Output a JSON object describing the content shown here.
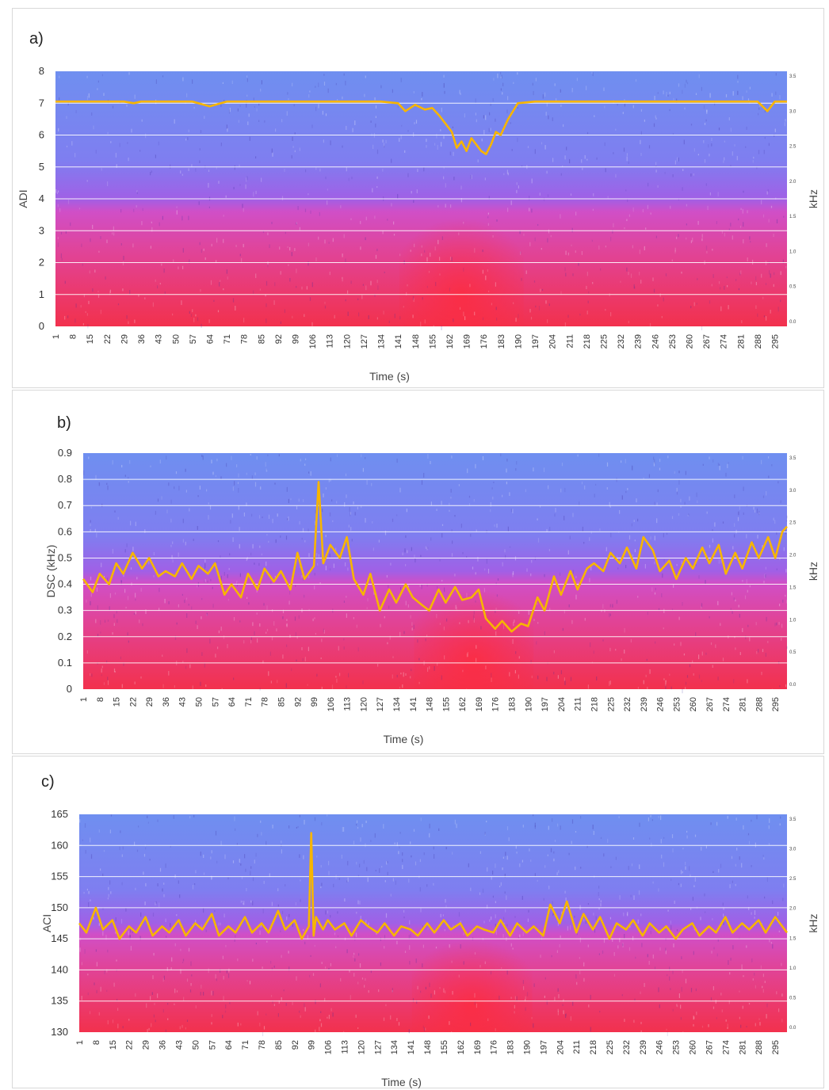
{
  "chart_data": [
    {
      "type": "line",
      "panel_label": "a)",
      "ylabel": "ADI",
      "xlabel": "Time (s)",
      "right_axis_label": "kHz",
      "ylim": [
        0,
        8
      ],
      "yticks": [
        0,
        1,
        2,
        3,
        4,
        5,
        6,
        7,
        8
      ],
      "right_ticks": [
        "0.0",
        "0.5",
        "1.0",
        "1.5",
        "2.0",
        "2.5",
        "3.0",
        "3.5"
      ],
      "xlim": [
        1,
        300
      ],
      "xticks": [
        1,
        8,
        15,
        22,
        29,
        36,
        43,
        50,
        57,
        64,
        71,
        78,
        85,
        92,
        99,
        106,
        113,
        120,
        127,
        134,
        141,
        148,
        155,
        162,
        169,
        176,
        183,
        190,
        197,
        204,
        211,
        218,
        225,
        232,
        239,
        246,
        253,
        260,
        267,
        274,
        281,
        288,
        295
      ],
      "grid": true,
      "series": [
        {
          "color": "#f7b500",
          "x": [
            1,
            8,
            15,
            22,
            29,
            33,
            36,
            43,
            50,
            57,
            64,
            71,
            78,
            85,
            92,
            99,
            106,
            113,
            120,
            127,
            134,
            141,
            144,
            148,
            152,
            155,
            158,
            161,
            163,
            165,
            167,
            169,
            171,
            173,
            175,
            177,
            179,
            181,
            183,
            186,
            190,
            197,
            204,
            211,
            218,
            225,
            232,
            239,
            246,
            253,
            260,
            267,
            274,
            281,
            288,
            292,
            295,
            300
          ],
          "y": [
            7.05,
            7.05,
            7.05,
            7.05,
            7.05,
            7.0,
            7.05,
            7.05,
            7.05,
            7.05,
            6.9,
            7.05,
            7.05,
            7.05,
            7.05,
            7.05,
            7.05,
            7.05,
            7.05,
            7.05,
            7.05,
            7.0,
            6.75,
            6.95,
            6.8,
            6.85,
            6.6,
            6.3,
            6.1,
            5.6,
            5.8,
            5.5,
            5.9,
            5.7,
            5.5,
            5.4,
            5.7,
            6.1,
            6.0,
            6.5,
            7.0,
            7.05,
            7.05,
            7.05,
            7.05,
            7.05,
            7.05,
            7.05,
            7.05,
            7.05,
            7.05,
            7.05,
            7.05,
            7.05,
            7.05,
            6.75,
            7.05,
            7.05
          ]
        }
      ]
    },
    {
      "type": "line",
      "panel_label": "b)",
      "ylabel": "DSC (kHz)",
      "xlabel": "Time (s)",
      "right_axis_label": "kHz",
      "ylim": [
        0,
        0.9
      ],
      "yticks": [
        0,
        0.1,
        0.2,
        0.3,
        0.4,
        0.5,
        0.6,
        0.7,
        0.8,
        0.9
      ],
      "right_ticks": [
        "0.0",
        "0.5",
        "1.0",
        "1.5",
        "2.0",
        "2.5",
        "3.0",
        "3.5"
      ],
      "xlim": [
        1,
        300
      ],
      "xticks": [
        1,
        8,
        15,
        22,
        29,
        36,
        43,
        50,
        57,
        64,
        71,
        78,
        85,
        92,
        99,
        106,
        113,
        120,
        127,
        134,
        141,
        148,
        155,
        162,
        169,
        176,
        183,
        190,
        197,
        204,
        211,
        218,
        225,
        232,
        239,
        246,
        253,
        260,
        267,
        274,
        281,
        288,
        295
      ],
      "grid": true,
      "series": [
        {
          "color": "#f7b500",
          "x": [
            1,
            5,
            8,
            12,
            15,
            18,
            22,
            26,
            29,
            33,
            36,
            40,
            43,
            47,
            50,
            54,
            57,
            61,
            64,
            68,
            71,
            75,
            78,
            82,
            85,
            89,
            92,
            95,
            99,
            101,
            103,
            106,
            110,
            113,
            116,
            120,
            123,
            127,
            131,
            134,
            138,
            141,
            145,
            148,
            152,
            155,
            159,
            162,
            166,
            169,
            172,
            176,
            179,
            183,
            187,
            190,
            194,
            197,
            201,
            204,
            208,
            211,
            215,
            218,
            222,
            225,
            229,
            232,
            236,
            239,
            243,
            246,
            250,
            253,
            257,
            260,
            264,
            267,
            271,
            274,
            278,
            281,
            285,
            288,
            292,
            295,
            298,
            300
          ],
          "y": [
            0.42,
            0.37,
            0.44,
            0.4,
            0.48,
            0.44,
            0.52,
            0.46,
            0.5,
            0.43,
            0.45,
            0.43,
            0.48,
            0.42,
            0.47,
            0.44,
            0.48,
            0.36,
            0.4,
            0.35,
            0.44,
            0.38,
            0.46,
            0.41,
            0.45,
            0.38,
            0.52,
            0.42,
            0.47,
            0.79,
            0.48,
            0.55,
            0.5,
            0.58,
            0.42,
            0.36,
            0.44,
            0.3,
            0.38,
            0.33,
            0.4,
            0.35,
            0.32,
            0.3,
            0.38,
            0.33,
            0.39,
            0.34,
            0.35,
            0.38,
            0.27,
            0.23,
            0.26,
            0.22,
            0.25,
            0.24,
            0.35,
            0.3,
            0.43,
            0.36,
            0.45,
            0.38,
            0.46,
            0.48,
            0.45,
            0.52,
            0.48,
            0.54,
            0.46,
            0.58,
            0.53,
            0.45,
            0.49,
            0.42,
            0.5,
            0.46,
            0.54,
            0.48,
            0.55,
            0.44,
            0.52,
            0.46,
            0.56,
            0.5,
            0.58,
            0.5,
            0.6,
            0.62
          ]
        }
      ]
    },
    {
      "type": "line",
      "panel_label": "c)",
      "ylabel": "ACI",
      "xlabel": "Time (s)",
      "right_axis_label": "kHz",
      "ylim": [
        130,
        165
      ],
      "yticks": [
        130,
        135,
        140,
        145,
        150,
        155,
        160,
        165
      ],
      "right_ticks": [
        "0.0",
        "0.5",
        "1.0",
        "1.5",
        "2.0",
        "2.5",
        "3.0",
        "3.5"
      ],
      "xlim": [
        1,
        300
      ],
      "xticks": [
        1,
        8,
        15,
        22,
        29,
        36,
        43,
        50,
        57,
        64,
        71,
        78,
        85,
        92,
        99,
        106,
        113,
        120,
        127,
        134,
        141,
        148,
        155,
        162,
        169,
        176,
        183,
        190,
        197,
        204,
        211,
        218,
        225,
        232,
        239,
        246,
        253,
        260,
        267,
        274,
        281,
        288,
        295
      ],
      "grid": true,
      "series": [
        {
          "color": "#f7b500",
          "x": [
            1,
            4,
            8,
            11,
            15,
            18,
            22,
            25,
            29,
            32,
            36,
            39,
            43,
            46,
            50,
            53,
            57,
            60,
            64,
            67,
            71,
            74,
            78,
            81,
            85,
            88,
            92,
            95,
            98,
            99,
            100,
            101,
            104,
            106,
            109,
            113,
            116,
            120,
            123,
            127,
            130,
            134,
            137,
            141,
            144,
            148,
            151,
            155,
            158,
            162,
            165,
            169,
            172,
            176,
            179,
            183,
            186,
            190,
            193,
            197,
            200,
            204,
            207,
            211,
            214,
            218,
            221,
            225,
            228,
            232,
            235,
            239,
            242,
            246,
            249,
            253,
            256,
            260,
            263,
            267,
            270,
            274,
            277,
            281,
            284,
            288,
            291,
            295,
            298,
            300
          ],
          "y": [
            147.5,
            146.0,
            150.0,
            146.5,
            148.0,
            145.0,
            147.0,
            146.0,
            148.5,
            145.5,
            147.0,
            146.0,
            148.0,
            145.5,
            147.5,
            146.5,
            149.0,
            145.5,
            147.0,
            146.0,
            148.5,
            146.0,
            147.5,
            146.0,
            149.5,
            146.5,
            148.0,
            145.0,
            147.0,
            162.0,
            145.5,
            148.5,
            146.5,
            148.0,
            146.5,
            147.5,
            145.5,
            148.0,
            147.0,
            146.0,
            147.5,
            145.5,
            147.0,
            146.5,
            145.5,
            147.5,
            146.0,
            148.0,
            146.5,
            147.5,
            145.5,
            147.0,
            146.5,
            146.0,
            148.0,
            145.5,
            147.5,
            146.0,
            147.0,
            145.5,
            150.5,
            147.5,
            151.0,
            146.0,
            149.0,
            146.5,
            148.5,
            145.0,
            147.5,
            146.5,
            148.0,
            145.5,
            147.5,
            146.0,
            147.0,
            145.0,
            146.5,
            147.5,
            145.5,
            147.0,
            146.0,
            148.5,
            146.0,
            147.5,
            146.5,
            148.0,
            146.0,
            148.5,
            147.0,
            146.0
          ]
        }
      ]
    }
  ]
}
